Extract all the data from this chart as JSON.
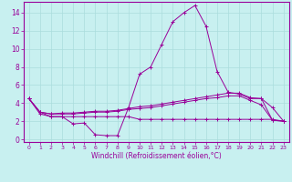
{
  "xlabel": "Windchill (Refroidissement éolien,°C)",
  "bg_color": "#c8f0f0",
  "line_color": "#990099",
  "grid_color": "#aadddd",
  "x_ticks": [
    0,
    1,
    2,
    3,
    4,
    5,
    6,
    7,
    8,
    9,
    10,
    11,
    12,
    13,
    14,
    15,
    16,
    17,
    18,
    19,
    20,
    21,
    22,
    23
  ],
  "y_ticks": [
    0,
    2,
    4,
    6,
    8,
    10,
    12,
    14
  ],
  "xlim": [
    -0.5,
    23.5
  ],
  "ylim": [
    -0.3,
    15.2
  ],
  "series": [
    {
      "y": [
        4.5,
        2.8,
        2.5,
        2.5,
        1.7,
        1.8,
        0.5,
        0.4,
        0.4,
        3.5,
        7.2,
        8.0,
        10.5,
        13.0,
        14.0,
        14.8,
        12.5,
        7.5,
        5.2,
        5.0,
        4.5,
        4.5,
        3.5,
        2.0
      ]
    },
    {
      "y": [
        4.5,
        3.0,
        2.8,
        2.9,
        2.9,
        3.0,
        3.1,
        3.1,
        3.2,
        3.4,
        3.6,
        3.7,
        3.9,
        4.1,
        4.3,
        4.5,
        4.7,
        4.9,
        5.1,
        5.1,
        4.6,
        4.5,
        2.1,
        2.0
      ]
    },
    {
      "y": [
        4.5,
        3.0,
        2.8,
        2.8,
        2.8,
        2.9,
        3.0,
        3.0,
        3.1,
        3.3,
        3.4,
        3.5,
        3.7,
        3.9,
        4.1,
        4.3,
        4.5,
        4.6,
        4.8,
        4.8,
        4.3,
        3.8,
        2.1,
        2.0
      ]
    },
    {
      "y": [
        4.5,
        3.0,
        2.5,
        2.5,
        2.5,
        2.5,
        2.5,
        2.5,
        2.5,
        2.5,
        2.2,
        2.2,
        2.2,
        2.2,
        2.2,
        2.2,
        2.2,
        2.2,
        2.2,
        2.2,
        2.2,
        2.2,
        2.2,
        2.0
      ]
    }
  ]
}
